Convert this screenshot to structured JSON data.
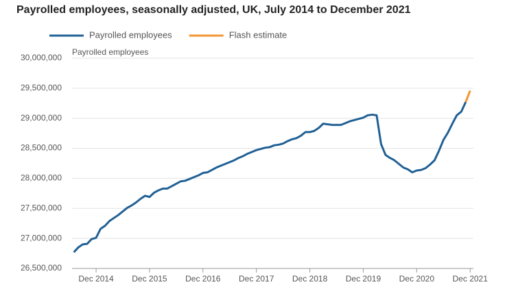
{
  "chart_data": {
    "type": "line",
    "title": "Payrolled employees, seasonally adjusted, UK, July 2014 to December 2021",
    "y_label": "Payrolled employees",
    "categories": [
      null,
      null,
      null,
      null,
      null,
      "Dec 2014",
      null,
      null,
      null,
      null,
      null,
      null,
      null,
      null,
      null,
      null,
      null,
      "Dec 2015",
      null,
      null,
      null,
      null,
      null,
      null,
      null,
      null,
      null,
      null,
      null,
      "Dec 2016",
      null,
      null,
      null,
      null,
      null,
      null,
      null,
      null,
      null,
      null,
      null,
      "Dec 2017",
      null,
      null,
      null,
      null,
      null,
      null,
      null,
      null,
      null,
      null,
      null,
      "Dec 2018",
      null,
      null,
      null,
      null,
      null,
      null,
      null,
      null,
      null,
      null,
      null,
      "Dec 2019",
      null,
      null,
      null,
      null,
      null,
      null,
      null,
      null,
      null,
      null,
      null,
      "Dec 2020",
      null,
      null,
      null,
      null,
      null,
      null,
      null,
      null,
      null,
      null,
      null,
      "Dec 2021"
    ],
    "series": [
      {
        "name": "Payrolled employees",
        "color": "#206095",
        "values": [
          26770000,
          26850000,
          26900000,
          26910000,
          26990000,
          27010000,
          27160000,
          27210000,
          27290000,
          27340000,
          27390000,
          27450000,
          27510000,
          27550000,
          27600000,
          27660000,
          27710000,
          27690000,
          27760000,
          27800000,
          27830000,
          27830000,
          27870000,
          27910000,
          27950000,
          27960000,
          27990000,
          28020000,
          28050000,
          28090000,
          28100000,
          28140000,
          28180000,
          28210000,
          28240000,
          28270000,
          28300000,
          28340000,
          28370000,
          28410000,
          28440000,
          28470000,
          28490000,
          28510000,
          28520000,
          28550000,
          28560000,
          28580000,
          28620000,
          28650000,
          28670000,
          28710000,
          28770000,
          28770000,
          28790000,
          28840000,
          28910000,
          28900000,
          28890000,
          28890000,
          28890000,
          28920000,
          28950000,
          28970000,
          28990000,
          29010000,
          29050000,
          29060000,
          29050000,
          28570000,
          28390000,
          28340000,
          28300000,
          28240000,
          28180000,
          28150000,
          28100000,
          28130000,
          28140000,
          28170000,
          28230000,
          28300000,
          28460000,
          28640000,
          28760000,
          28910000,
          29050000,
          29110000,
          29270000,
          null
        ]
      },
      {
        "name": "Flash estimate",
        "color": "#f39431",
        "values": [
          null,
          null,
          null,
          null,
          null,
          null,
          null,
          null,
          null,
          null,
          null,
          null,
          null,
          null,
          null,
          null,
          null,
          null,
          null,
          null,
          null,
          null,
          null,
          null,
          null,
          null,
          null,
          null,
          null,
          null,
          null,
          null,
          null,
          null,
          null,
          null,
          null,
          null,
          null,
          null,
          null,
          null,
          null,
          null,
          null,
          null,
          null,
          null,
          null,
          null,
          null,
          null,
          null,
          null,
          null,
          null,
          null,
          null,
          null,
          null,
          null,
          null,
          null,
          null,
          null,
          null,
          null,
          null,
          null,
          null,
          null,
          null,
          null,
          null,
          null,
          null,
          null,
          null,
          null,
          null,
          null,
          null,
          null,
          null,
          null,
          null,
          null,
          null,
          29270000,
          29460000
        ]
      }
    ],
    "ylim": [
      26500000,
      30000000
    ],
    "yticks": [
      {
        "value": 26500000,
        "label": "26,500,000"
      },
      {
        "value": 27000000,
        "label": "27,000,000"
      },
      {
        "value": 27500000,
        "label": "27,500,000"
      },
      {
        "value": 28000000,
        "label": "28,000,000"
      },
      {
        "value": 28500000,
        "label": "28,500,000"
      },
      {
        "value": 29000000,
        "label": "29,000,000"
      },
      {
        "value": 29500000,
        "label": "29,500,000"
      },
      {
        "value": 30000000,
        "label": "30,000,000"
      }
    ],
    "grid": true
  }
}
